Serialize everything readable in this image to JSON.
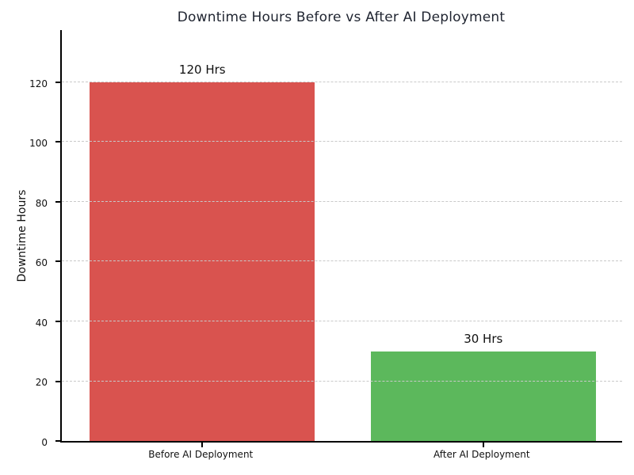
{
  "chart_data": {
    "type": "bar",
    "title": "Downtime Hours Before vs After AI Deployment",
    "categories": [
      "Before AI Deployment",
      "After AI Deployment"
    ],
    "values": [
      120,
      30
    ],
    "bar_labels": [
      "120 Hrs",
      "30 Hrs"
    ],
    "bar_colors": [
      "#d9534f",
      "#5cb85c"
    ],
    "xlabel": "",
    "ylabel": "Downtime Hours",
    "ylim": [
      0,
      138
    ],
    "yticks": [
      0,
      20,
      40,
      60,
      80,
      100,
      120
    ],
    "grid": "horizontal-dashed-over-bars",
    "legend": "none",
    "colors": {
      "title_text": "#1f2430",
      "axis": "#000000",
      "grid": "#c9c9c9",
      "background": "#ffffff",
      "before_bar": "#d9534f",
      "after_bar": "#5cb85c"
    }
  }
}
